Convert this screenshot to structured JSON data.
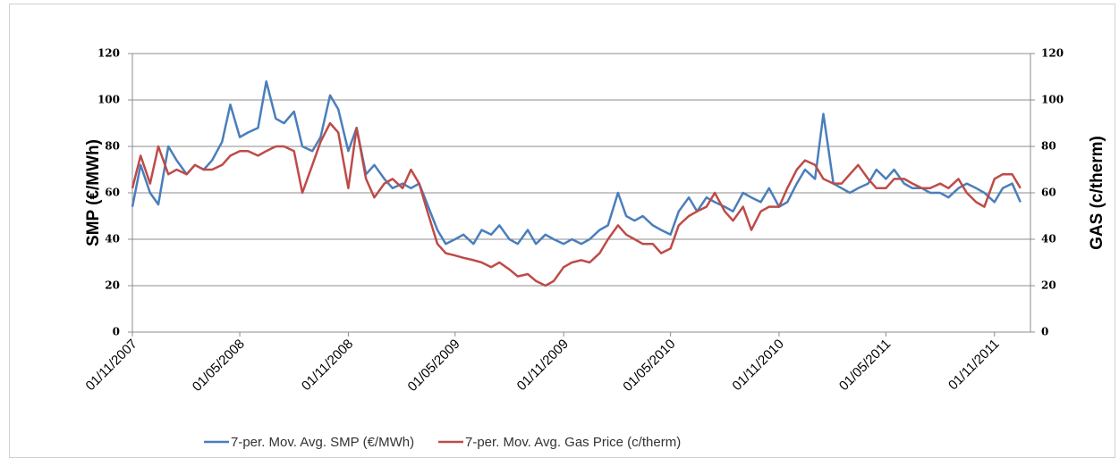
{
  "chart_data": {
    "type": "line",
    "y_label": "SMP (€/MWh)",
    "y2_label": "GAS (c/therm)",
    "x": [
      "01/11/2007",
      "15/11/2007",
      "01/12/2007",
      "15/12/2007",
      "01/01/2008",
      "15/01/2008",
      "01/02/2008",
      "15/02/2008",
      "01/03/2008",
      "15/03/2008",
      "01/04/2008",
      "15/04/2008",
      "01/05/2008",
      "15/05/2008",
      "01/06/2008",
      "15/06/2008",
      "01/07/2008",
      "15/07/2008",
      "01/08/2008",
      "15/08/2008",
      "01/09/2008",
      "15/09/2008",
      "01/10/2008",
      "15/10/2008",
      "01/11/2008",
      "15/11/2008",
      "01/12/2008",
      "15/12/2008",
      "01/01/2009",
      "15/01/2009",
      "01/02/2009",
      "15/02/2009",
      "01/03/2009",
      "15/03/2009",
      "01/04/2009",
      "15/04/2009",
      "01/05/2009",
      "15/05/2009",
      "01/06/2009",
      "15/06/2009",
      "01/07/2009",
      "15/07/2009",
      "01/08/2009",
      "15/08/2009",
      "01/09/2009",
      "15/09/2009",
      "01/10/2009",
      "15/10/2009",
      "01/11/2009",
      "15/11/2009",
      "01/12/2009",
      "15/12/2009",
      "01/01/2010",
      "15/01/2010",
      "01/02/2010",
      "15/02/2010",
      "01/03/2010",
      "15/03/2010",
      "01/04/2010",
      "15/04/2010",
      "01/05/2010",
      "15/05/2010",
      "01/06/2010",
      "15/06/2010",
      "01/07/2010",
      "15/07/2010",
      "01/08/2010",
      "15/08/2010",
      "01/09/2010",
      "15/09/2010",
      "01/10/2010",
      "15/10/2010",
      "01/11/2010",
      "15/11/2010",
      "01/12/2010",
      "15/12/2010",
      "01/01/2011",
      "15/01/2011",
      "01/02/2011",
      "15/02/2011",
      "01/03/2011",
      "15/03/2011",
      "01/04/2011",
      "15/04/2011",
      "01/05/2011",
      "15/05/2011",
      "01/06/2011",
      "15/06/2011",
      "01/07/2011",
      "15/07/2011",
      "01/08/2011",
      "15/08/2011",
      "01/09/2011",
      "15/09/2011",
      "01/10/2011",
      "15/10/2011",
      "01/11/2011",
      "15/11/2011",
      "01/12/2011",
      "15/12/2011"
    ],
    "series": [
      {
        "name": "7-per. Mov. Avg. SMP (€/MWh)",
        "color": "#4a7ebb",
        "axis": "y",
        "values": [
          54,
          72,
          60,
          55,
          80,
          74,
          68,
          72,
          70,
          74,
          82,
          98,
          84,
          86,
          88,
          108,
          92,
          90,
          95,
          80,
          78,
          84,
          102,
          96,
          78,
          88,
          68,
          72,
          66,
          62,
          64,
          62,
          64,
          55,
          44,
          38,
          40,
          42,
          38,
          44,
          42,
          46,
          40,
          38,
          44,
          38,
          42,
          40,
          38,
          40,
          38,
          40,
          44,
          46,
          60,
          50,
          48,
          50,
          46,
          44,
          42,
          52,
          58,
          52,
          58,
          56,
          54,
          52,
          60,
          58,
          56,
          62,
          54,
          56,
          64,
          70,
          66,
          94,
          64,
          62,
          60,
          62,
          64,
          70,
          66,
          70,
          64,
          62,
          62,
          60,
          60,
          58,
          62,
          64,
          62,
          60,
          56,
          62,
          64,
          56
        ]
      },
      {
        "name": "7-per. Mov. Avg. Gas Price (c/therm)",
        "color": "#be4b48",
        "axis": "y2",
        "values": [
          62,
          76,
          64,
          80,
          68,
          70,
          68,
          72,
          70,
          70,
          72,
          76,
          78,
          78,
          76,
          78,
          80,
          80,
          78,
          60,
          72,
          82,
          90,
          86,
          62,
          88,
          66,
          58,
          64,
          66,
          62,
          70,
          64,
          52,
          38,
          34,
          33,
          32,
          31,
          30,
          28,
          30,
          27,
          24,
          25,
          22,
          20,
          22,
          28,
          30,
          31,
          30,
          34,
          40,
          46,
          42,
          40,
          38,
          38,
          34,
          36,
          46,
          50,
          52,
          54,
          60,
          52,
          48,
          54,
          44,
          52,
          54,
          54,
          62,
          70,
          74,
          72,
          66,
          64,
          64,
          68,
          72,
          66,
          62,
          62,
          66,
          66,
          64,
          62,
          62,
          64,
          62,
          66,
          60,
          56,
          54,
          66,
          68,
          68,
          62
        ]
      }
    ],
    "xlim": [
      "01/11/2007",
      "01/01/2012"
    ],
    "xticks": [
      "01/11/2007",
      "01/05/2008",
      "01/11/2008",
      "01/05/2009",
      "01/11/2009",
      "01/05/2010",
      "01/11/2010",
      "01/05/2011",
      "01/11/2011"
    ],
    "ylim": [
      0,
      120
    ],
    "yticks": [
      0,
      20,
      40,
      60,
      80,
      100,
      120
    ],
    "y2lim": [
      0,
      120
    ],
    "y2ticks": [
      0,
      20,
      40,
      60,
      80,
      100,
      120
    ],
    "grid": true,
    "legend": "bottom"
  }
}
